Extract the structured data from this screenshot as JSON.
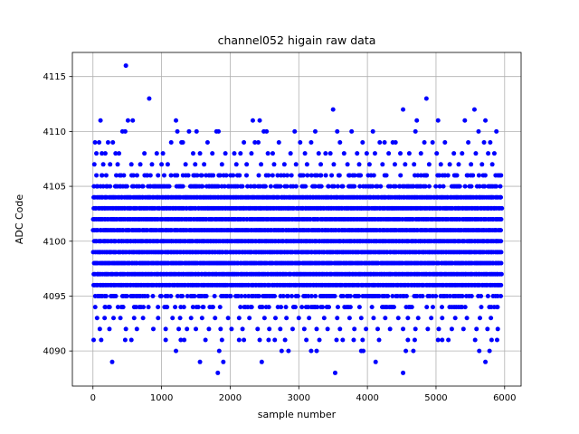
{
  "chart_data": {
    "type": "scatter",
    "title": "channel052 higain raw data",
    "xlabel": "sample number",
    "ylabel": "ADC Code",
    "xlim": [
      -300,
      6240
    ],
    "ylim": [
      4086.8,
      4117.2
    ],
    "xticks": [
      0,
      1000,
      2000,
      3000,
      4000,
      5000,
      6000
    ],
    "yticks": [
      4090,
      4095,
      4100,
      4105,
      4110,
      4115
    ],
    "grid": true,
    "marker_color": "#0000ff",
    "sample_count": 5950,
    "dense_band": {
      "low": 4094,
      "high": 4106
    },
    "levels": [
      {
        "y": 4116,
        "x": [
          480
        ]
      },
      {
        "y": 4113,
        "x": [
          820,
          4860
        ]
      },
      {
        "y": 4112,
        "x": [
          3500,
          4520,
          5560
        ]
      },
      {
        "y": 4111,
        "x": [
          110,
          510,
          580,
          1210,
          2330,
          2430,
          4720,
          5030,
          5420,
          5720
        ]
      },
      {
        "y": 4110,
        "x": [
          430,
          470,
          1230,
          1400,
          1510,
          1800,
          1830,
          2490,
          2530,
          2940,
          3240,
          3560,
          3770,
          4080,
          4700,
          5620,
          5880
        ]
      },
      {
        "y": 4109,
        "x": [
          30,
          90,
          220,
          290,
          1140,
          1290,
          1310,
          1670,
          2200,
          2360,
          2410,
          2710,
          3020,
          3180,
          3600,
          3930,
          4180,
          4250,
          4370,
          4410,
          4830,
          4950,
          5130,
          5470,
          5700,
          5790
        ]
      },
      {
        "y": 4108,
        "x": [
          50,
          130,
          180,
          330,
          380,
          750,
          930,
          1020,
          1460,
          1560,
          1740,
          1930,
          2060,
          2150,
          2310,
          2550,
          2620,
          2880,
          3090,
          3290,
          3390,
          3460,
          3660,
          3850,
          3990,
          4110,
          4310,
          4480,
          4610,
          4780,
          5010,
          5260,
          5380,
          5580,
          5760,
          5850
        ]
      },
      {
        "y": 4107,
        "x": [
          20,
          150,
          250,
          360,
          560,
          690,
          860,
          1000,
          1090,
          1350,
          1490,
          1620,
          1880,
          2090,
          2240,
          2450,
          2640,
          2790,
          2960,
          3120,
          3320,
          3510,
          3710,
          3880,
          4030,
          4220,
          4400,
          4550,
          4680,
          4900,
          5070,
          5200,
          5330,
          5510,
          5670,
          5820
        ]
      },
      {
        "y": 4093,
        "x": [
          60,
          170,
          300,
          400,
          600,
          730,
          950,
          1160,
          1270,
          1430,
          1590,
          1780,
          1970,
          2130,
          2280,
          2500,
          2660,
          2820,
          3000,
          3150,
          3370,
          3560,
          3740,
          3910,
          4090,
          4260,
          4450,
          4590,
          4740,
          4930,
          5090,
          5280,
          5450,
          5640,
          5800
        ]
      },
      {
        "y": 4092,
        "x": [
          100,
          240,
          480,
          640,
          880,
          1060,
          1250,
          1370,
          1500,
          1690,
          1860,
          2020,
          2180,
          2400,
          2570,
          2730,
          2910,
          3080,
          3260,
          3420,
          3600,
          3810,
          3980,
          4150,
          4330,
          4520,
          4700,
          4880,
          5040,
          5230,
          5400,
          5590,
          5750,
          5900
        ]
      },
      {
        "y": 4091,
        "x": [
          10,
          120,
          470,
          560,
          1060,
          1280,
          1330,
          1640,
          1880,
          2130,
          2200,
          2430,
          2560,
          2650,
          2800,
          3110,
          3300,
          3550,
          3640,
          3800,
          3930,
          4170,
          4590,
          4690,
          5030,
          5090,
          5180,
          5570,
          5810,
          5890
        ]
      },
      {
        "y": 4090,
        "x": [
          1210,
          1840,
          2750,
          2850,
          3180,
          3260,
          3910,
          3940,
          4560,
          4670,
          5630,
          5780
        ]
      },
      {
        "y": 4089,
        "x": [
          280,
          1560,
          1900,
          2460,
          4120,
          5720
        ]
      },
      {
        "y": 4088,
        "x": [
          1820,
          3530,
          4520
        ]
      }
    ]
  }
}
